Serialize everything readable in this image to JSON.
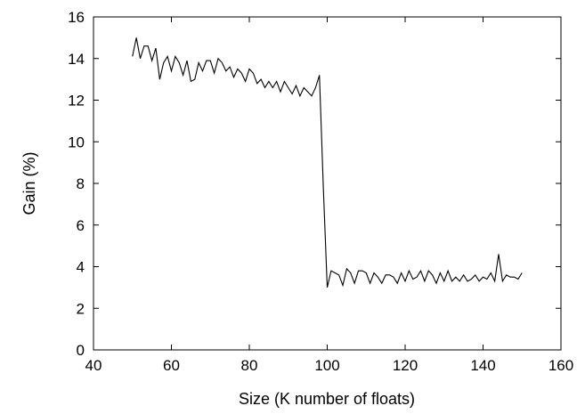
{
  "chart_data": {
    "type": "line",
    "title": "",
    "xlabel": "Size (K number of floats)",
    "ylabel": "Gain (%)",
    "xlim": [
      40,
      160
    ],
    "ylim": [
      0,
      16
    ],
    "xticks": [
      40,
      60,
      80,
      100,
      120,
      140,
      160
    ],
    "yticks": [
      0,
      2,
      4,
      6,
      8,
      10,
      12,
      14,
      16
    ],
    "grid": false,
    "legend": "none",
    "line_color": "#000000",
    "series": [
      {
        "x": [
          50,
          51,
          52,
          53,
          54,
          55,
          56,
          57,
          58,
          59,
          60,
          61,
          62,
          63,
          64,
          65,
          66,
          67,
          68,
          69,
          70,
          71,
          72,
          73,
          74,
          75,
          76,
          77,
          78,
          79,
          80,
          81,
          82,
          83,
          84,
          85,
          86,
          87,
          88,
          89,
          90,
          91,
          92,
          93,
          94,
          95,
          96,
          97,
          98,
          99,
          100,
          101,
          102,
          103,
          104,
          105,
          106,
          107,
          108,
          109,
          110,
          111,
          112,
          113,
          114,
          115,
          116,
          117,
          118,
          119,
          120,
          121,
          122,
          123,
          124,
          125,
          126,
          127,
          128,
          129,
          130,
          131,
          132,
          133,
          134,
          135,
          136,
          137,
          138,
          139,
          140,
          141,
          142,
          143,
          144,
          145,
          146,
          147,
          148,
          149,
          150
        ],
        "values": [
          14.1,
          15.0,
          14.0,
          14.6,
          14.6,
          13.9,
          14.5,
          13.0,
          13.8,
          14.1,
          13.4,
          14.1,
          13.8,
          13.2,
          13.9,
          12.9,
          13.0,
          13.8,
          13.4,
          13.9,
          13.9,
          13.3,
          14.0,
          13.8,
          13.4,
          13.6,
          13.1,
          13.5,
          13.3,
          12.9,
          13.5,
          13.3,
          12.8,
          13.0,
          12.6,
          12.9,
          12.6,
          12.9,
          12.4,
          12.9,
          12.6,
          12.3,
          12.7,
          12.2,
          12.6,
          12.4,
          12.2,
          12.6,
          13.2,
          7.8,
          3.0,
          3.8,
          3.7,
          3.6,
          3.1,
          3.9,
          3.7,
          3.2,
          3.8,
          3.8,
          3.7,
          3.2,
          3.7,
          3.5,
          3.2,
          3.6,
          3.6,
          3.5,
          3.2,
          3.7,
          3.3,
          3.8,
          3.4,
          3.5,
          3.8,
          3.3,
          3.8,
          3.6,
          3.2,
          3.7,
          3.3,
          3.8,
          3.3,
          3.5,
          3.3,
          3.6,
          3.3,
          3.4,
          3.6,
          3.3,
          3.5,
          3.4,
          3.7,
          3.3,
          4.6,
          3.3,
          3.6,
          3.5,
          3.5,
          3.4,
          3.7
        ]
      }
    ]
  }
}
